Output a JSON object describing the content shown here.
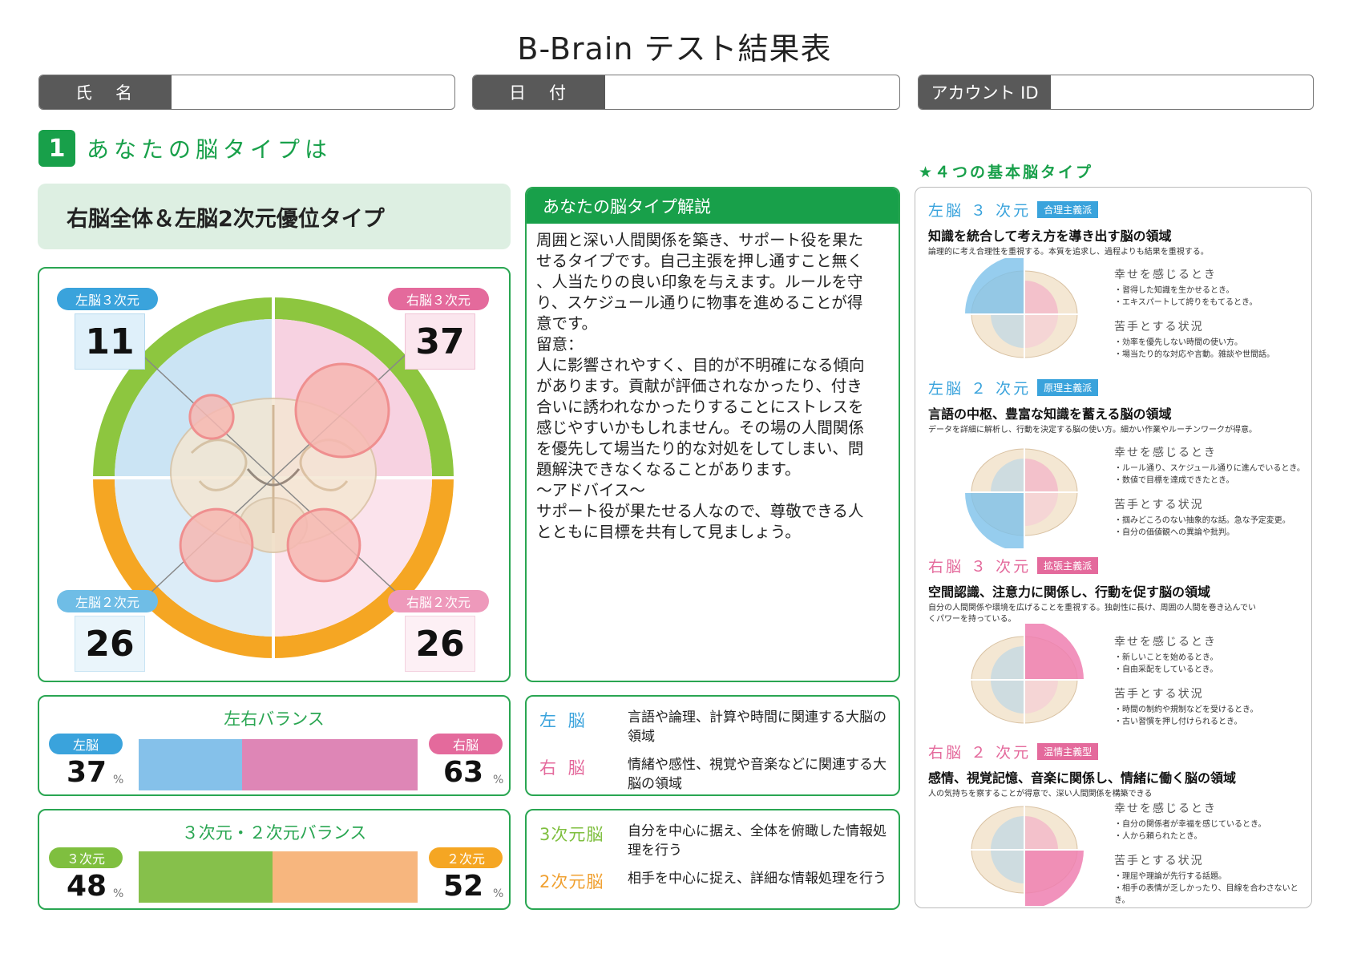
{
  "title": "B-Brain テスト結果表",
  "fields": [
    {
      "label": "氏　名",
      "value": ""
    },
    {
      "label": "日　付",
      "value": ""
    },
    {
      "label": "アカウント ID",
      "value": ""
    }
  ],
  "section": {
    "number": "1",
    "title": "あなたの脳タイプは"
  },
  "brain_type": "右脳全体＆左脳2次元優位タイプ",
  "quadrants": {
    "left3": {
      "label": "左脳３次元",
      "score": "11",
      "value": 11
    },
    "right3": {
      "label": "右脳３次元",
      "score": "37",
      "value": 37
    },
    "left2": {
      "label": "左脳２次元",
      "score": "26",
      "value": 26
    },
    "right2": {
      "label": "右脳２次元",
      "score": "26",
      "value": 26
    }
  },
  "lr_balance": {
    "title": "左右バランス",
    "left_label": "左脳",
    "left_value": "37",
    "left_num": 37,
    "right_label": "右脳",
    "right_value": "63",
    "right_num": 63,
    "unit": "%"
  },
  "dim_balance": {
    "title": "３次元・２次元バランス",
    "left_label": "３次元",
    "left_value": "48",
    "left_num": 48,
    "right_label": "２次元",
    "right_value": "52",
    "right_num": 52,
    "unit": "%"
  },
  "explanation": {
    "header": "あなたの脳タイプ解説",
    "body": "周囲と深い人間関係を築き、サポート役を果た\nせるタイプです。自己主張を押し通すこと無く\n、人当たりの良い印象を与えます。ルールを守\nり、スケジュール通りに物事を進めることが得\n意です。\n留意：\n人に影響されやすく、目的が不明確になる傾向\nがあります。貢献が評価されなかったり、付き\n合いに誘われなかったりすることにストレスを\n感じやすいかもしれません。その場の人間関係\nを優先して場当たり的な対処をしてしまい、問\n題解決できなくなることがあります。\n〜アドバイス〜\nサポート役が果たせる人なので、尊敬できる人\nとともに目標を共有して見ましょう。"
  },
  "brain_defs": [
    {
      "key": "左 脳",
      "text": "言語や論理、計算や時間に関連する大脳の領域",
      "color": "#3aa3dc"
    },
    {
      "key": "右 脳",
      "text": "情緒や感性、視覚や音楽などに関連する大脳の領域",
      "color": "#e46a9c"
    }
  ],
  "dim_defs": [
    {
      "key": "3次元脳",
      "text": "自分を中心に据え、全体を俯瞰した情報処理を行う",
      "color": "#7fbf3f"
    },
    {
      "key": "2次元脳",
      "text": "相手を中心に捉え、詳細な情報処理を行う",
      "color": "#f0a030"
    }
  ],
  "basic_types_title": "★４つの基本脳タイプ",
  "basic_types": [
    {
      "name": "左脳 ３ 次元",
      "tag": "合理主義派",
      "color": "#3aa3dc",
      "tag_color": "#3aa3dc",
      "subtitle": "知識を統合して考え方を導き出す脳の領域",
      "desc": "論理的に考え合理性を重視する。本質を追求し、過程よりも結果を重視する。",
      "happy_label": "幸せを感じるとき",
      "happy": [
        "・習得した知識を生かせるとき。",
        "・エキスパートして誇りをもてるとき。"
      ],
      "weak_label": "苦手とする状況",
      "weak": [
        "・効率を優先しない時間の使い方。",
        "・場当たり的な対応や言動。雑談や世間話。"
      ]
    },
    {
      "name": "左脳 ２ 次元",
      "tag": "原理主義派",
      "color": "#3aa3dc",
      "tag_color": "#3aa3dc",
      "subtitle": "言語の中枢、豊富な知識を蓄える脳の領域",
      "desc": "データを詳細に解析し、行動を決定する脳の使い方。細かい作業やルーチンワークが得意。",
      "happy_label": "幸せを感じるとき",
      "happy": [
        "・ルール通り、スケジュール通りに進んでいるとき。",
        "・数値で目標を達成できたとき。"
      ],
      "weak_label": "苦手とする状況",
      "weak": [
        "・掴みどころのない抽象的な話。急な予定変更。",
        "・自分の価値観への異論や批判。"
      ]
    },
    {
      "name": "右脳 ３ 次元",
      "tag": "拡張主義派",
      "color": "#e46a9c",
      "tag_color": "#e46a9c",
      "subtitle": "空間認識、注意力に関係し、行動を促す脳の領域",
      "desc": "自分の人間関係や環境を広げることを重視する。独創性に長け、周囲の人間を巻き込んでい\nくパワーを持っている。",
      "happy_label": "幸せを感じるとき",
      "happy": [
        "・新しいことを始めるとき。",
        "・自由采配をしているとき。"
      ],
      "weak_label": "苦手とする状況",
      "weak": [
        "・時間の制約や規制などを受けるとき。",
        "・古い習慣を押し付けられるとき。"
      ]
    },
    {
      "name": "右脳 ２ 次元",
      "tag": "温情主義型",
      "color": "#e46a9c",
      "tag_color": "#e46a9c",
      "subtitle": "感情、視覚記憶、音楽に関係し、情緒に働く脳の領域",
      "desc": "人の気持ちを察することが得意で、深い人間関係を構築できる",
      "happy_label": "幸せを感じるとき",
      "happy": [
        "・自分の関係者が幸福を感じているとき。",
        "・人から頼られたとき。"
      ],
      "weak_label": "苦手とする状況",
      "weak": [
        "・理屈や理論が先行する話題。",
        "・相手の表情が乏しかったり、目線を合わさないとき。"
      ]
    }
  ],
  "colors": {
    "green": "#18a04a",
    "blue": "#3aa3dc",
    "pink": "#e46a9c",
    "lime": "#8dc63f",
    "orange": "#f5a623",
    "circle": "#f29c9c"
  }
}
